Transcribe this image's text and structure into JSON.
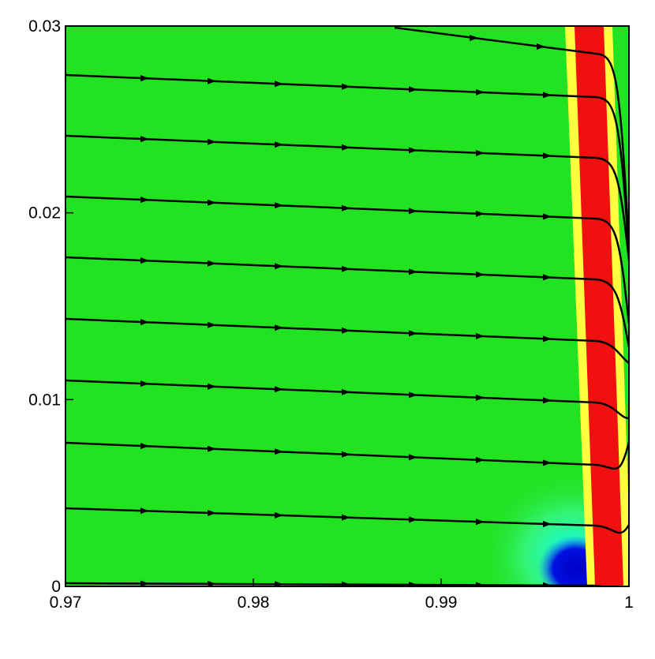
{
  "chart_data": {
    "type": "contour",
    "xlim": [
      0.97,
      1
    ],
    "xticks": [
      0.97,
      0.98,
      0.99,
      1
    ],
    "ylim": [
      0,
      0.03
    ],
    "yticks": [
      0,
      0.01,
      0.02,
      0.03
    ]
  }
}
